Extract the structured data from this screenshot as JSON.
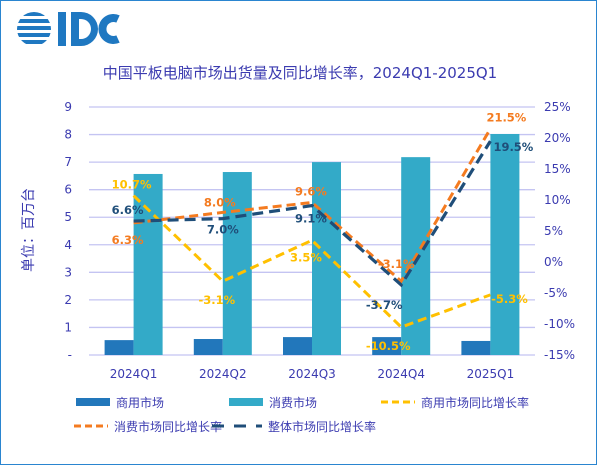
{
  "logo": {
    "text": "IDC",
    "color": "#1f78c1"
  },
  "chart_data": {
    "type": "bar+line",
    "title": "中国平板电脑市场出货量及同比增长率，2024Q1-2025Q1",
    "ylabel": "单位：百万台",
    "categories": [
      "2024Q1",
      "2024Q2",
      "2024Q3",
      "2024Q4",
      "2025Q1"
    ],
    "ylim": [
      0,
      9
    ],
    "y_ticks": [
      "-",
      "1",
      "2",
      "3",
      "4",
      "5",
      "6",
      "7",
      "8",
      "9"
    ],
    "y2lim": [
      -15,
      25
    ],
    "y2_ticks": [
      "-15%",
      "-10%",
      "-5%",
      "0%",
      "5%",
      "10%",
      "15%",
      "20%",
      "25%"
    ],
    "grid": true,
    "legend_placement": "bottom",
    "bar_series": [
      {
        "name": "商用市场",
        "color": "#2277bb",
        "values": [
          0.54,
          0.58,
          0.65,
          0.65,
          0.51
        ]
      },
      {
        "name": "消费市场",
        "color": "#33aac8",
        "values": [
          6.57,
          6.64,
          7.0,
          7.18,
          8.02
        ]
      }
    ],
    "line_series": [
      {
        "name": "商用市场同比增长率",
        "color": "#ffc000",
        "values": [
          10.7,
          -3.1,
          3.5,
          -10.5,
          -5.3
        ],
        "labels": [
          "10.7%",
          "-3.1%",
          "3.5%",
          "-10.5%",
          "-5.3%"
        ]
      },
      {
        "name": "消费市场同比增长率",
        "color": "#f47b20",
        "values": [
          6.3,
          8.0,
          9.6,
          -3.1,
          21.5
        ],
        "labels": [
          "6.3%",
          "8.0%",
          "9.6%",
          "-3.1%",
          "21.5%"
        ]
      },
      {
        "name": "整体市场同比增长率",
        "color": "#1f4e79",
        "values": [
          6.6,
          7.0,
          9.1,
          -3.7,
          19.5
        ],
        "labels": [
          "6.6%",
          "7.0%",
          "9.1%",
          "-3.7%",
          "19.5%"
        ]
      }
    ]
  }
}
